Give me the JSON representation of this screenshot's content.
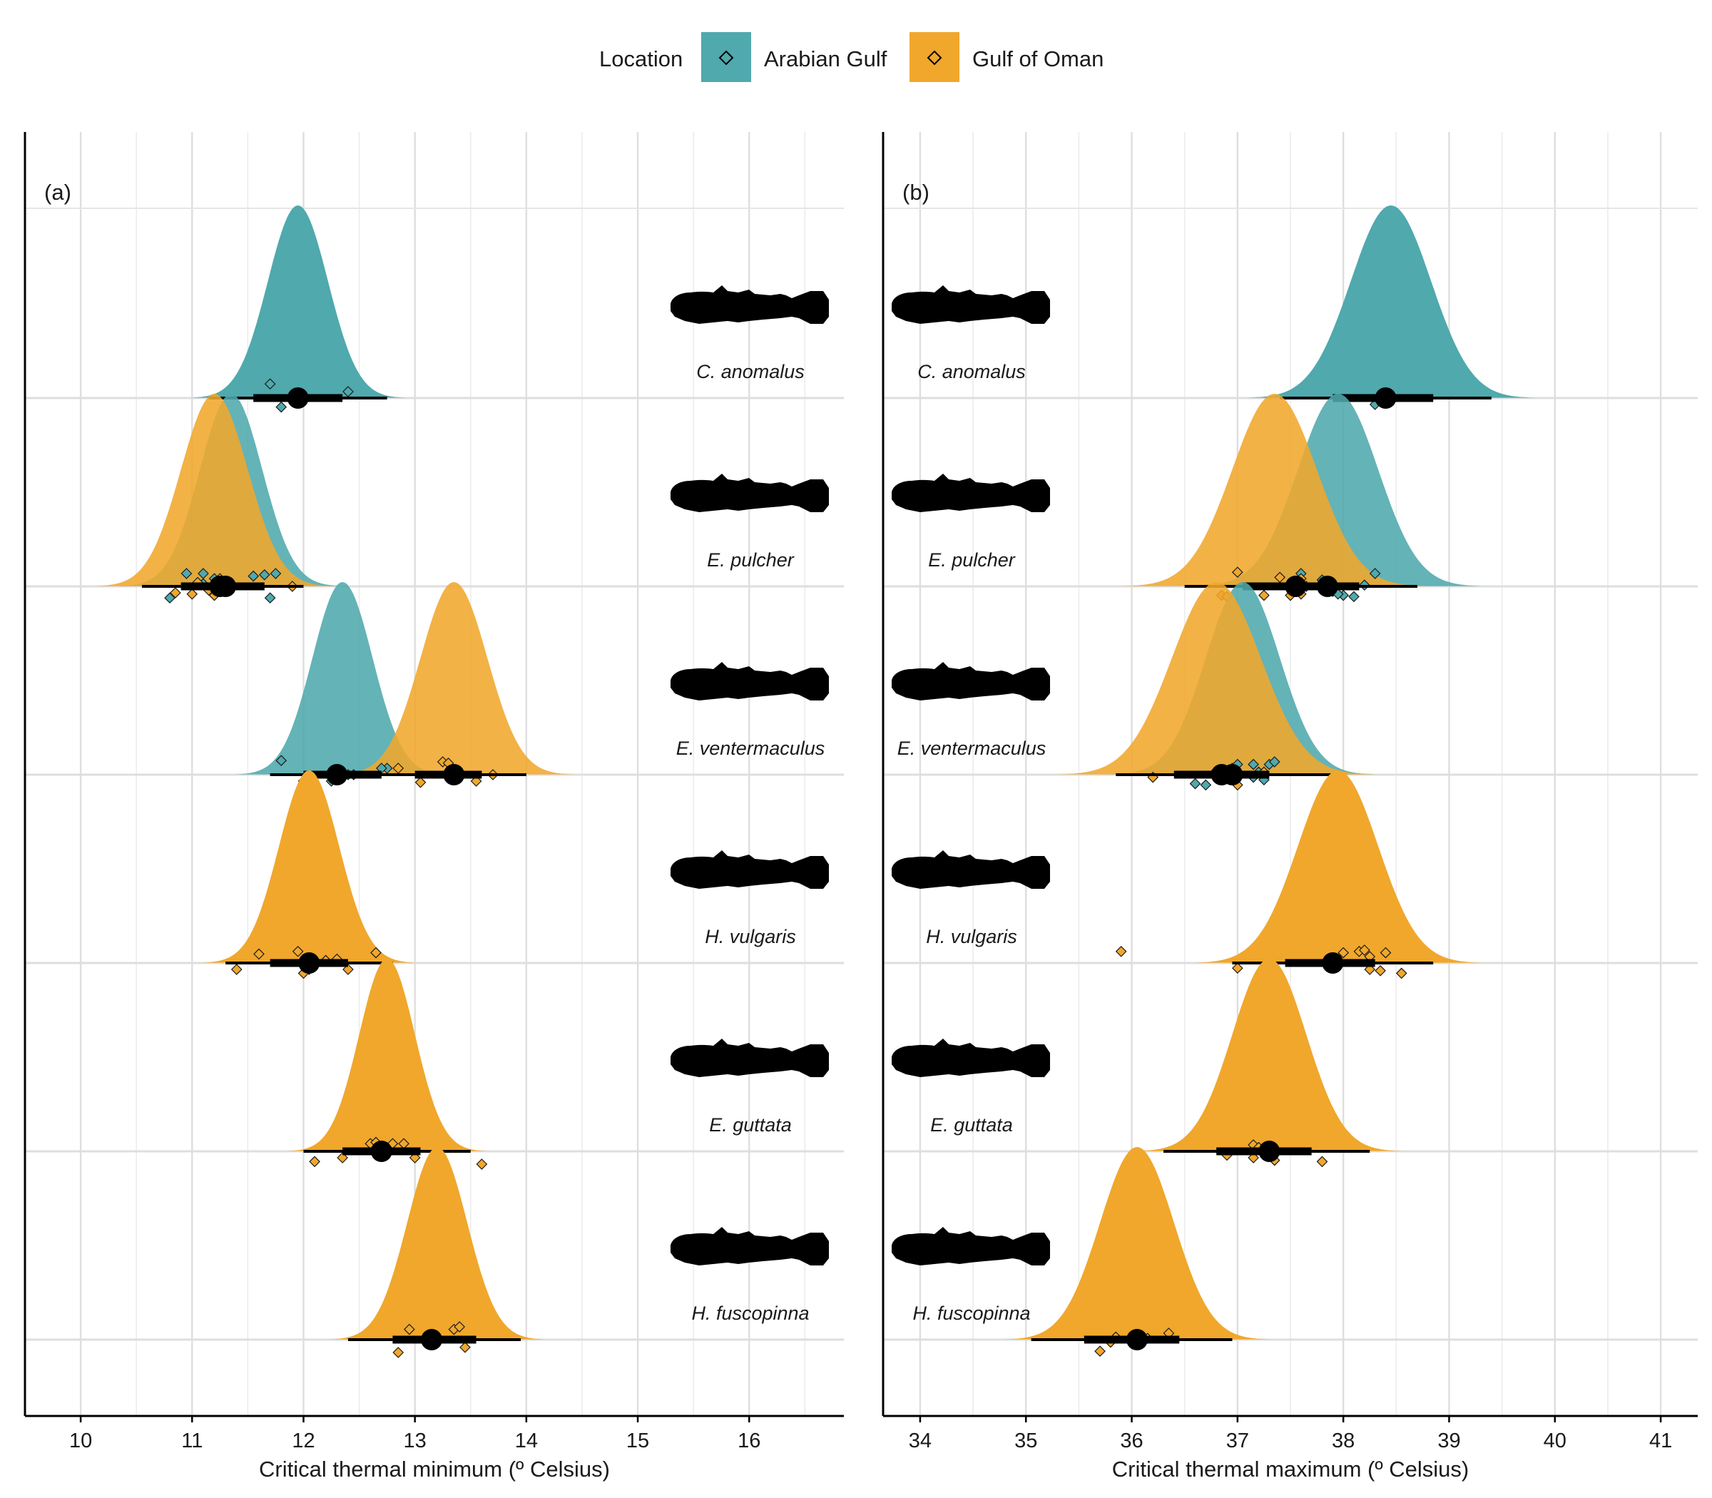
{
  "legend": {
    "title": "Location",
    "items": [
      {
        "label": "Arabian Gulf",
        "color": "#4fa9ad"
      },
      {
        "label": "Gulf of Oman",
        "color": "#f0a72c"
      }
    ]
  },
  "colors": {
    "arabian_gulf": "#4fa9ad",
    "gulf_of_oman": "#f0a72c",
    "grid": "#e3e3e3",
    "interval": "#000000"
  },
  "icons": [
    "goby-silhouette-icon"
  ],
  "chart_data": [
    {
      "type": "halfeye-density",
      "panel_label": "(a)",
      "xlabel": "Critical thermal minimum (º Celsius)",
      "ylabel": "",
      "xlim": [
        9.5,
        16.85
      ],
      "xticks": [
        10,
        11,
        12,
        13,
        14,
        15,
        16
      ],
      "grid": true,
      "species": [
        {
          "name": "C. anomalus",
          "series": [
            {
              "location": "Arabian Gulf",
              "mean": 11.95,
              "sd": 0.27,
              "median": 11.95,
              "ci66": [
                11.55,
                12.35
              ],
              "ci95": [
                11.15,
                12.75
              ],
              "points": [
                [
                  11.7,
                  0.11
                ],
                [
                  12.4,
                  0.05
                ],
                [
                  11.8,
                  -0.07
                ]
              ]
            }
          ]
        },
        {
          "name": "E. pulcher",
          "series": [
            {
              "location": "Arabian Gulf",
              "mean": 11.35,
              "sd": 0.28,
              "median": 11.3,
              "ci66": [
                10.95,
                11.65
              ],
              "ci95": [
                10.6,
                12.0
              ],
              "points": [
                [
                  10.95,
                  0.1
                ],
                [
                  11.1,
                  0.1
                ],
                [
                  11.55,
                  0.08
                ],
                [
                  11.65,
                  0.09
                ],
                [
                  11.75,
                  0.1
                ],
                [
                  11.3,
                  0.04
                ],
                [
                  11.2,
                  0.06
                ],
                [
                  10.8,
                  -0.09
                ],
                [
                  11.7,
                  -0.09
                ],
                [
                  11.1,
                  0.02
                ]
              ]
            },
            {
              "location": "Gulf of Oman",
              "mean": 11.2,
              "sd": 0.3,
              "median": 11.25,
              "ci66": [
                10.9,
                11.55
              ],
              "ci95": [
                10.55,
                11.95
              ],
              "points": [
                [
                  10.85,
                  -0.05
                ],
                [
                  11.0,
                  -0.06
                ],
                [
                  11.25,
                  0.06
                ],
                [
                  11.2,
                  -0.07
                ],
                [
                  11.15,
                  -0.03
                ],
                [
                  11.9,
                  0.0
                ],
                [
                  11.05,
                  0.03
                ],
                [
                  11.3,
                  -0.02
                ]
              ]
            }
          ]
        },
        {
          "name": "E. ventermaculus",
          "series": [
            {
              "location": "Arabian Gulf",
              "mean": 12.35,
              "sd": 0.27,
              "median": 12.3,
              "ci66": [
                12.0,
                12.7
              ],
              "ci95": [
                11.7,
                13.0
              ],
              "points": [
                [
                  11.8,
                  0.11
                ],
                [
                  12.45,
                  0.0
                ],
                [
                  12.75,
                  0.05
                ],
                [
                  12.7,
                  0.05
                ],
                [
                  12.4,
                  0.0
                ],
                [
                  12.0,
                  -0.05
                ],
                [
                  12.0,
                  -0.07
                ],
                [
                  12.25,
                  -0.05
                ]
              ]
            },
            {
              "location": "Gulf of Oman",
              "mean": 13.35,
              "sd": 0.3,
              "median": 13.35,
              "ci66": [
                13.0,
                13.6
              ],
              "ci95": [
                12.6,
                14.0
              ],
              "points": [
                [
                  13.25,
                  0.1
                ],
                [
                  13.3,
                  0.09
                ],
                [
                  13.05,
                  -0.06
                ],
                [
                  13.55,
                  -0.05
                ],
                [
                  13.7,
                  0.0
                ],
                [
                  12.85,
                  0.05
                ]
              ]
            }
          ]
        },
        {
          "name": "H. vulgaris",
          "series": [
            {
              "location": "Gulf of Oman",
              "mean": 12.05,
              "sd": 0.27,
              "median": 12.05,
              "ci66": [
                11.7,
                12.4
              ],
              "ci95": [
                11.3,
                12.8
              ],
              "points": [
                [
                  11.6,
                  0.07
                ],
                [
                  11.95,
                  0.09
                ],
                [
                  12.65,
                  0.08
                ],
                [
                  12.3,
                  0.03
                ],
                [
                  12.05,
                  -0.05
                ],
                [
                  11.4,
                  -0.05
                ],
                [
                  12.4,
                  -0.05
                ],
                [
                  12.0,
                  -0.08
                ],
                [
                  12.2,
                  0.02
                ]
              ]
            }
          ]
        },
        {
          "name": "E. guttata",
          "series": [
            {
              "location": "Gulf of Oman",
              "mean": 12.75,
              "sd": 0.25,
              "median": 12.7,
              "ci66": [
                12.35,
                13.05
              ],
              "ci95": [
                12.0,
                13.5
              ],
              "points": [
                [
                  12.6,
                  0.06
                ],
                [
                  12.65,
                  0.07
                ],
                [
                  12.8,
                  0.06
                ],
                [
                  12.9,
                  0.06
                ],
                [
                  12.75,
                  0.0
                ],
                [
                  12.1,
                  -0.08
                ],
                [
                  12.35,
                  -0.05
                ],
                [
                  13.0,
                  -0.05
                ],
                [
                  13.6,
                  -0.1
                ]
              ]
            }
          ]
        },
        {
          "name": "H. fuscopinna",
          "series": [
            {
              "location": "Gulf of Oman",
              "mean": 13.2,
              "sd": 0.27,
              "median": 13.15,
              "ci66": [
                12.8,
                13.55
              ],
              "ci95": [
                12.4,
                13.95
              ],
              "points": [
                [
                  12.95,
                  0.08
                ],
                [
                  13.35,
                  0.08
                ],
                [
                  13.4,
                  0.1
                ],
                [
                  13.2,
                  0.0
                ],
                [
                  12.85,
                  -0.1
                ],
                [
                  13.45,
                  -0.06
                ]
              ]
            }
          ]
        }
      ]
    },
    {
      "type": "halfeye-density",
      "panel_label": "(b)",
      "xlabel": "Critical thermal maximum (º Celsius)",
      "ylabel": "",
      "xlim": [
        33.65,
        41.35
      ],
      "xticks": [
        34,
        35,
        36,
        37,
        38,
        39,
        40,
        41
      ],
      "grid": true,
      "species": [
        {
          "name": "C. anomalus",
          "series": [
            {
              "location": "Arabian Gulf",
              "mean": 38.45,
              "sd": 0.38,
              "median": 38.4,
              "ci66": [
                37.9,
                38.85
              ],
              "ci95": [
                37.4,
                39.4
              ],
              "points": [
                [
                  38.35,
                  0.0
                ],
                [
                  38.45,
                  0.0
                ],
                [
                  38.3,
                  -0.05
                ],
                [
                  38.4,
                  0.02
                ]
              ]
            }
          ]
        },
        {
          "name": "E. pulcher",
          "series": [
            {
              "location": "Arabian Gulf",
              "mean": 37.95,
              "sd": 0.38,
              "median": 37.85,
              "ci66": [
                37.45,
                38.15
              ],
              "ci95": [
                37.0,
                38.7
              ],
              "points": [
                [
                  37.6,
                  0.1
                ],
                [
                  38.3,
                  0.1
                ],
                [
                  37.8,
                  0.05
                ],
                [
                  38.2,
                  0.01
                ],
                [
                  37.9,
                  -0.04
                ],
                [
                  38.0,
                  -0.07
                ],
                [
                  38.1,
                  -0.08
                ],
                [
                  37.95,
                  -0.06
                ],
                [
                  37.65,
                  0.0
                ]
              ]
            },
            {
              "location": "Gulf of Oman",
              "mean": 37.35,
              "sd": 0.4,
              "median": 37.55,
              "ci66": [
                37.05,
                37.9
              ],
              "ci95": [
                36.5,
                38.3
              ],
              "points": [
                [
                  37.0,
                  0.11
                ],
                [
                  37.4,
                  0.07
                ],
                [
                  37.6,
                  0.06
                ],
                [
                  37.55,
                  0.0
                ],
                [
                  37.6,
                  -0.06
                ],
                [
                  37.25,
                  -0.07
                ],
                [
                  37.5,
                  -0.07
                ],
                [
                  36.85,
                  -0.07
                ],
                [
                  36.9,
                  -0.08
                ]
              ]
            }
          ]
        },
        {
          "name": "E. ventermaculus",
          "series": [
            {
              "location": "Arabian Gulf",
              "mean": 37.05,
              "sd": 0.35,
              "median": 36.95,
              "ci66": [
                36.4,
                37.3
              ],
              "ci95": [
                35.9,
                37.9
              ],
              "points": [
                [
                  37.0,
                  0.08
                ],
                [
                  37.15,
                  0.08
                ],
                [
                  37.3,
                  0.08
                ],
                [
                  37.35,
                  0.1
                ],
                [
                  36.85,
                  0.04
                ],
                [
                  37.25,
                  -0.04
                ],
                [
                  37.15,
                  -0.02
                ],
                [
                  36.6,
                  -0.07
                ],
                [
                  36.7,
                  -0.08
                ],
                [
                  37.2,
                  0.02
                ]
              ]
            },
            {
              "location": "Gulf of Oman",
              "mean": 36.8,
              "sd": 0.42,
              "median": 36.85,
              "ci66": [
                36.4,
                37.25
              ],
              "ci95": [
                35.85,
                37.85
              ],
              "points": [
                [
                  36.2,
                  -0.02
                ],
                [
                  37.0,
                  -0.08
                ],
                [
                  36.95,
                  0.05
                ],
                [
                  37.25,
                  0.02
                ],
                [
                  36.8,
                  0.03
                ]
              ]
            }
          ]
        },
        {
          "name": "H. vulgaris",
          "series": [
            {
              "location": "Gulf of Oman",
              "mean": 37.95,
              "sd": 0.38,
              "median": 37.9,
              "ci66": [
                37.45,
                38.3
              ],
              "ci95": [
                36.95,
                38.85
              ],
              "points": [
                [
                  35.9,
                  0.09
                ],
                [
                  38.0,
                  0.08
                ],
                [
                  38.15,
                  0.09
                ],
                [
                  38.2,
                  0.1
                ],
                [
                  38.4,
                  0.08
                ],
                [
                  38.25,
                  0.05
                ],
                [
                  37.0,
                  -0.04
                ],
                [
                  38.35,
                  -0.06
                ],
                [
                  38.25,
                  -0.05
                ],
                [
                  38.55,
                  -0.08
                ]
              ]
            }
          ]
        },
        {
          "name": "E. guttata",
          "series": [
            {
              "location": "Gulf of Oman",
              "mean": 37.3,
              "sd": 0.35,
              "median": 37.3,
              "ci66": [
                36.8,
                37.7
              ],
              "ci95": [
                36.3,
                38.25
              ],
              "points": [
                [
                  37.15,
                  0.05
                ],
                [
                  37.2,
                  0.03
                ],
                [
                  36.9,
                  -0.03
                ],
                [
                  37.15,
                  -0.05
                ],
                [
                  37.35,
                  -0.07
                ],
                [
                  37.8,
                  -0.08
                ]
              ]
            }
          ]
        },
        {
          "name": "H. fuscopinna",
          "series": [
            {
              "location": "Gulf of Oman",
              "mean": 36.05,
              "sd": 0.35,
              "median": 36.05,
              "ci66": [
                35.55,
                36.45
              ],
              "ci95": [
                35.05,
                36.95
              ],
              "points": [
                [
                  35.85,
                  0.02
                ],
                [
                  36.0,
                  0.0
                ],
                [
                  36.05,
                  -0.02
                ],
                [
                  36.15,
                  0.01
                ],
                [
                  36.35,
                  0.05
                ],
                [
                  35.8,
                  -0.02
                ],
                [
                  35.7,
                  -0.09
                ]
              ]
            }
          ]
        }
      ]
    }
  ]
}
